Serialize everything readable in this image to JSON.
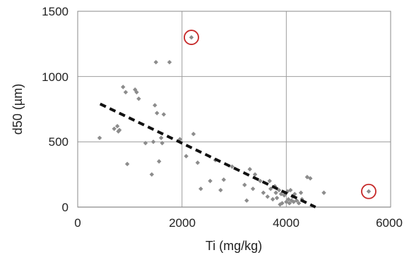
{
  "chart_data": {
    "type": "scatter",
    "xlabel": "Ti (mg/kg)",
    "ylabel": "d50 (µm)",
    "xlim": [
      0,
      6000
    ],
    "ylim": [
      0,
      1500
    ],
    "x_ticks": [
      "0",
      "2000",
      "4000",
      "6000"
    ],
    "y_ticks": [
      "0",
      "500",
      "1000",
      "1500"
    ],
    "grid": "vertical and horizontal major gridlines",
    "colors": {
      "points": "#8c8c8c",
      "trendline": "#111111",
      "highlight": "#c62828"
    },
    "points": [
      {
        "x": 420,
        "y": 530
      },
      {
        "x": 700,
        "y": 600
      },
      {
        "x": 760,
        "y": 620
      },
      {
        "x": 780,
        "y": 580
      },
      {
        "x": 800,
        "y": 590
      },
      {
        "x": 870,
        "y": 920
      },
      {
        "x": 920,
        "y": 880
      },
      {
        "x": 950,
        "y": 330
      },
      {
        "x": 1100,
        "y": 900
      },
      {
        "x": 1130,
        "y": 880
      },
      {
        "x": 1170,
        "y": 830
      },
      {
        "x": 1300,
        "y": 490
      },
      {
        "x": 1420,
        "y": 250
      },
      {
        "x": 1450,
        "y": 500
      },
      {
        "x": 1480,
        "y": 780
      },
      {
        "x": 1500,
        "y": 1110
      },
      {
        "x": 1520,
        "y": 720
      },
      {
        "x": 1560,
        "y": 350
      },
      {
        "x": 1600,
        "y": 530
      },
      {
        "x": 1620,
        "y": 490
      },
      {
        "x": 1650,
        "y": 710
      },
      {
        "x": 1760,
        "y": 1110
      },
      {
        "x": 1960,
        "y": 520
      },
      {
        "x": 2080,
        "y": 390
      },
      {
        "x": 2180,
        "y": 1300
      },
      {
        "x": 2220,
        "y": 560
      },
      {
        "x": 2300,
        "y": 340
      },
      {
        "x": 2360,
        "y": 140
      },
      {
        "x": 2540,
        "y": 200
      },
      {
        "x": 2640,
        "y": 360
      },
      {
        "x": 2740,
        "y": 130
      },
      {
        "x": 2800,
        "y": 210
      },
      {
        "x": 2960,
        "y": 310
      },
      {
        "x": 3200,
        "y": 170
      },
      {
        "x": 3240,
        "y": 50
      },
      {
        "x": 3300,
        "y": 290
      },
      {
        "x": 3360,
        "y": 140
      },
      {
        "x": 3400,
        "y": 250
      },
      {
        "x": 3500,
        "y": 200
      },
      {
        "x": 3560,
        "y": 110
      },
      {
        "x": 3640,
        "y": 80
      },
      {
        "x": 3680,
        "y": 200
      },
      {
        "x": 3700,
        "y": 140
      },
      {
        "x": 3740,
        "y": 60
      },
      {
        "x": 3780,
        "y": 160
      },
      {
        "x": 3800,
        "y": 110
      },
      {
        "x": 3820,
        "y": 70
      },
      {
        "x": 3860,
        "y": 130
      },
      {
        "x": 3880,
        "y": 20
      },
      {
        "x": 3900,
        "y": 100
      },
      {
        "x": 3920,
        "y": 30
      },
      {
        "x": 3960,
        "y": 90
      },
      {
        "x": 4000,
        "y": 40
      },
      {
        "x": 4020,
        "y": 120
      },
      {
        "x": 4040,
        "y": 60
      },
      {
        "x": 4060,
        "y": 30
      },
      {
        "x": 4080,
        "y": 130
      },
      {
        "x": 4100,
        "y": 50
      },
      {
        "x": 4120,
        "y": 80
      },
      {
        "x": 4140,
        "y": 40
      },
      {
        "x": 4160,
        "y": 100
      },
      {
        "x": 4200,
        "y": 50
      },
      {
        "x": 4240,
        "y": 30
      },
      {
        "x": 4280,
        "y": 110
      },
      {
        "x": 4300,
        "y": 60
      },
      {
        "x": 4400,
        "y": 230
      },
      {
        "x": 4460,
        "y": 220
      },
      {
        "x": 4720,
        "y": 110
      },
      {
        "x": 5580,
        "y": 120
      }
    ],
    "trendline": {
      "style": "dashed",
      "x": [
        430,
        4560
      ],
      "y": [
        790,
        0
      ]
    },
    "highlighted_points": [
      {
        "x": 2180,
        "y": 1300
      },
      {
        "x": 5580,
        "y": 120
      }
    ]
  }
}
